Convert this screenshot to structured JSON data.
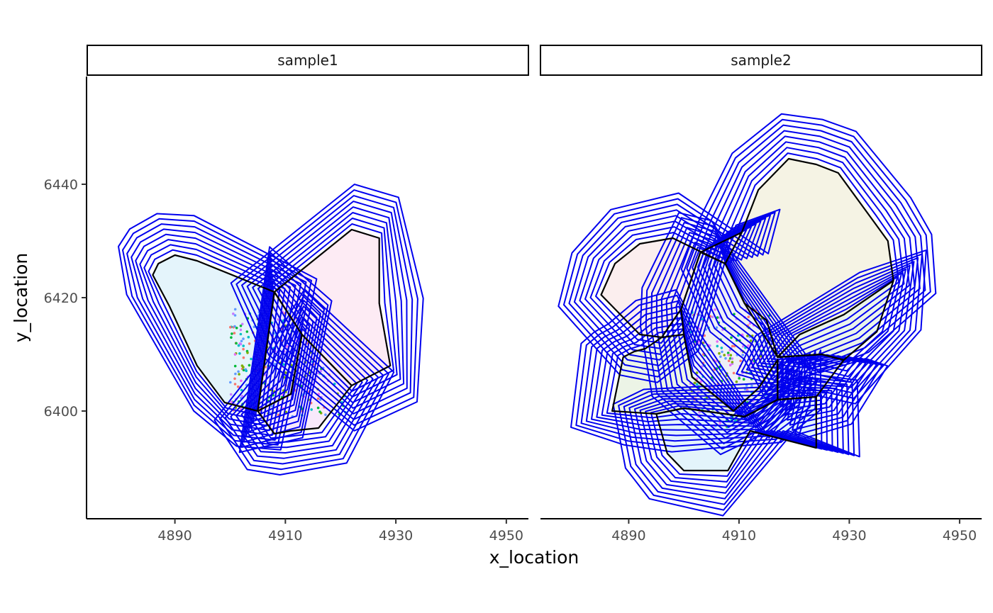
{
  "chart_data": {
    "type": "polygon-overlay",
    "xlabel": "x_location",
    "ylabel": "y_location",
    "xlim": [
      4874,
      4954
    ],
    "ylim": [
      6381,
      6459
    ],
    "x_ticks": [
      4890,
      4910,
      4930,
      4950
    ],
    "y_ticks": [
      6400,
      6420,
      6440
    ],
    "grid": false,
    "legend": "none",
    "colors": {
      "boundary": "#000000",
      "expanded": "#0000ee",
      "strip_fill": "#ffffff",
      "axis": "#000000",
      "points": [
        "#f8766d",
        "#00ba38",
        "#619cff",
        "#c77cff",
        "#00bfc4",
        "#e76bf3",
        "#7cae00"
      ]
    },
    "expansions": [
      1,
      2,
      3,
      4,
      5,
      6,
      7,
      8
    ],
    "panels": [
      {
        "strip": "sample1",
        "points_region": [
          [
            4900,
            6418
          ],
          [
            4911,
            6418
          ],
          [
            4923,
            6399
          ],
          [
            4900,
            6399
          ]
        ],
        "cells": [
          {
            "fill": "#e4f4fb",
            "poly": [
              [
                4890,
                6427.5
              ],
              [
                4894,
                6426.5
              ],
              [
                4908,
                6421
              ],
              [
                4905,
                6400
              ],
              [
                4899,
                6401.5
              ],
              [
                4894,
                6408
              ],
              [
                4889,
                6418.5
              ],
              [
                4886,
                6424
              ],
              [
                4887,
                6426
              ]
            ]
          },
          {
            "fill": "#ece7fc",
            "poly": [
              [
                4908,
                6421
              ],
              [
                4913,
                6413.5
              ],
              [
                4911,
                6403
              ],
              [
                4905,
                6400
              ]
            ]
          },
          {
            "fill": "#f8e9fb",
            "poly": [
              [
                4913,
                6413.5
              ],
              [
                4922,
                6404.5
              ],
              [
                4916,
                6397
              ],
              [
                4911,
                6396.5
              ],
              [
                4908,
                6396
              ],
              [
                4905,
                6400
              ],
              [
                4911,
                6403
              ]
            ]
          },
          {
            "fill": "#fdebf4",
            "poly": [
              [
                4908,
                6421
              ],
              [
                4922,
                6432
              ],
              [
                4927,
                6430.5
              ],
              [
                4927,
                6419
              ],
              [
                4929,
                6408
              ],
              [
                4922,
                6404.5
              ],
              [
                4913,
                6413.5
              ]
            ]
          }
        ]
      },
      {
        "strip": "sample2",
        "points_region": [
          [
            4901,
            6418
          ],
          [
            4916,
            6418
          ],
          [
            4915,
            6397
          ],
          [
            4901,
            6397
          ]
        ],
        "cells": [
          {
            "fill": "#f5f3e4",
            "poly": [
              [
                4919,
                6444.5
              ],
              [
                4924,
                6443.5
              ],
              [
                4928,
                6442
              ],
              [
                4934,
                6434
              ],
              [
                4937,
                6430
              ],
              [
                4938,
                6423
              ],
              [
                4929,
                6417
              ],
              [
                4921,
                6413.5
              ],
              [
                4917,
                6409.5
              ],
              [
                4915,
                6416
              ],
              [
                4911,
                6419
              ],
              [
                4907.5,
                6426
              ],
              [
                4910.5,
                6431.5
              ],
              [
                4913.5,
                6439
              ]
            ]
          },
          {
            "fill": "#fbeeee",
            "poly": [
              [
                4887.5,
                6426
              ],
              [
                4892,
                6429.5
              ],
              [
                4898,
                6430.5
              ],
              [
                4907.5,
                6426
              ],
              [
                4910.5,
                6431.5
              ],
              [
                4903,
                6428
              ],
              [
                4899.5,
                6418
              ],
              [
                4896,
                6413
              ],
              [
                4892,
                6413.5
              ],
              [
                4885,
                6420.5
              ]
            ]
          },
          {
            "fill": "#ecf4e6",
            "poly": [
              [
                4889,
                6409.5
              ],
              [
                4887,
                6400
              ],
              [
                4895,
                6399.5
              ],
              [
                4900,
                6400.5
              ],
              [
                4911,
                6399
              ],
              [
                4917,
                6402
              ],
              [
                4917,
                6409
              ],
              [
                4913.5,
                6404
              ],
              [
                4909,
                6400
              ],
              [
                4901.5,
                6406
              ],
              [
                4900,
                6413.5
              ],
              [
                4896,
                6413
              ],
              [
                4893,
                6411
              ],
              [
                4891,
                6410.5
              ]
            ]
          },
          {
            "fill": "#eaf4ea",
            "poly": [
              [
                4921,
                6413.5
              ],
              [
                4929,
                6417
              ],
              [
                4938,
                6423
              ],
              [
                4935,
                6414
              ],
              [
                4929,
                6409
              ],
              [
                4925,
                6410
              ],
              [
                4917,
                6409.5
              ]
            ]
          },
          {
            "fill": "#e3f4fb",
            "poly": [
              [
                4895,
                6399.5
              ],
              [
                4897,
                6392.5
              ],
              [
                4900,
                6389.5
              ],
              [
                4908,
                6389.5
              ],
              [
                4912,
                6396.5
              ],
              [
                4924,
                6393.5
              ],
              [
                4924,
                6402.5
              ],
              [
                4917,
                6402
              ],
              [
                4911,
                6399
              ],
              [
                4900,
                6400.5
              ]
            ]
          },
          {
            "fill": "#eef0f6",
            "poly": [
              [
                4900,
                6413.5
              ],
              [
                4901.5,
                6406
              ],
              [
                4909,
                6400
              ],
              [
                4913.5,
                6404
              ],
              [
                4917,
                6409
              ],
              [
                4917,
                6402
              ],
              [
                4924,
                6402.5
              ],
              [
                4929,
                6409
              ],
              [
                4925,
                6410
              ],
              [
                4917,
                6409.5
              ],
              [
                4911,
                6419
              ],
              [
                4907.5,
                6426
              ],
              [
                4903,
                6428
              ],
              [
                4899.5,
                6418
              ]
            ]
          }
        ]
      }
    ]
  }
}
